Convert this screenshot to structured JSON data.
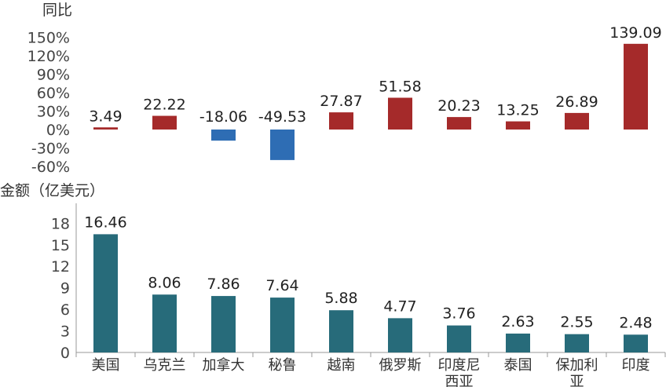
{
  "colors": {
    "positive": "#a52a2a",
    "negative": "#2e6db4",
    "amount": "#276b7a",
    "axis": "#999999"
  },
  "chart_data": [
    {
      "type": "bar",
      "ylabel": "同比",
      "ylim": [
        -60,
        150
      ],
      "y_ticks": [
        "150%",
        "120%",
        "90%",
        "60%",
        "30%",
        "0%",
        "-30%",
        "-60%"
      ],
      "y_tick_values": [
        150,
        120,
        90,
        60,
        30,
        0,
        -30,
        -60
      ],
      "categories": [
        "美国",
        "乌克兰",
        "加拿大",
        "秘鲁",
        "越南",
        "俄罗斯",
        "印度尼西亚",
        "泰国",
        "保加利亚",
        "印度"
      ],
      "values": [
        3.49,
        22.22,
        -18.06,
        -49.53,
        27.87,
        51.58,
        20.23,
        13.25,
        26.89,
        139.09
      ],
      "value_labels": [
        "3.49",
        "22.22",
        "-18.06",
        "-49.53",
        "27.87",
        "51.58",
        "20.23",
        "13.25",
        "26.89",
        "139.09"
      ],
      "grid": false
    },
    {
      "type": "bar",
      "ylabel": "金额（亿美元）",
      "ylim": [
        0,
        18
      ],
      "y_ticks": [
        "18",
        "15",
        "12",
        "9",
        "6",
        "3",
        "0"
      ],
      "y_tick_values": [
        18,
        15,
        12,
        9,
        6,
        3,
        0
      ],
      "categories": [
        "美国",
        "乌克兰",
        "加拿大",
        "秘鲁",
        "越南",
        "俄罗斯",
        "印度尼西亚",
        "泰国",
        "保加利亚",
        "印度"
      ],
      "category_lines": [
        [
          "美国"
        ],
        [
          "乌克兰"
        ],
        [
          "加拿大"
        ],
        [
          "秘鲁"
        ],
        [
          "越南"
        ],
        [
          "俄罗斯"
        ],
        [
          "印度尼",
          "西亚"
        ],
        [
          "泰国"
        ],
        [
          "保加利",
          "亚"
        ],
        [
          "印度"
        ]
      ],
      "values": [
        16.46,
        8.06,
        7.86,
        7.64,
        5.88,
        4.77,
        3.76,
        2.63,
        2.55,
        2.48
      ],
      "value_labels": [
        "16.46",
        "8.06",
        "7.86",
        "7.64",
        "5.88",
        "4.77",
        "3.76",
        "2.63",
        "2.55",
        "2.48"
      ],
      "grid": false
    }
  ]
}
